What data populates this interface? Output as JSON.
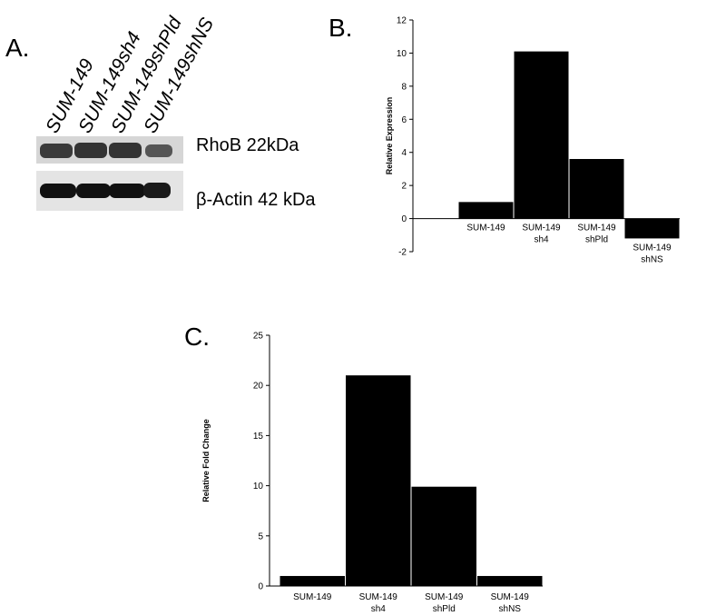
{
  "blot": {
    "label": "A.",
    "lanes": [
      "SUM-149",
      "SUM-149sh4",
      "SUM-149shPld",
      "SUM-149shNS"
    ],
    "bands": [
      "RhoB 22kDa",
      "β-Actin 42 kDa"
    ]
  },
  "chart_data": [
    {
      "type": "bar",
      "panel": "B.",
      "y_label": "Relative Expression",
      "categories": [
        "SUM-149",
        "SUM-149\nsh4",
        "SUM-149\nshPld",
        "SUM-149\nshNS"
      ],
      "values": [
        1,
        10.1,
        3.6,
        -1.2
      ],
      "color": "#000000",
      "ylim": [
        -2,
        12
      ],
      "yticks": [
        -2,
        0,
        2,
        4,
        6,
        8,
        10,
        12
      ]
    },
    {
      "type": "bar",
      "panel": "C.",
      "y_label": "Relative Fold Change",
      "categories": [
        "SUM-149",
        "SUM-149\nsh4",
        "SUM-149\nshPld",
        "SUM-149\nshNS"
      ],
      "values": [
        1,
        21,
        9.9,
        1
      ],
      "color": "#000000",
      "ylim": [
        0,
        25
      ],
      "yticks": [
        0,
        5,
        10,
        15,
        20,
        25
      ]
    }
  ]
}
